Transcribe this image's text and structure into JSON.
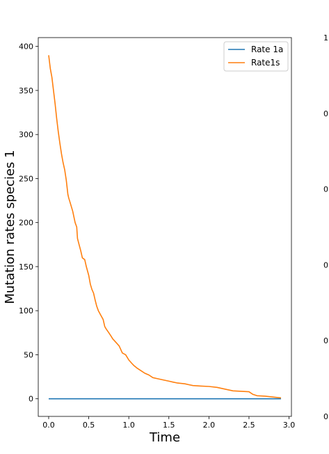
{
  "chart_data": [
    {
      "type": "line",
      "xlabel": "Time",
      "ylabel": "Mutation rates species 1",
      "xlim": [
        -0.13,
        3.03
      ],
      "ylim": [
        -20,
        410
      ],
      "xticks": [
        {
          "value": 0.0,
          "label": "0.0"
        },
        {
          "value": 0.5,
          "label": "0.5"
        },
        {
          "value": 1.0,
          "label": "1.0"
        },
        {
          "value": 1.5,
          "label": "1.5"
        },
        {
          "value": 2.0,
          "label": "2.0"
        },
        {
          "value": 2.5,
          "label": "2.5"
        },
        {
          "value": 3.0,
          "label": "3.0"
        }
      ],
      "yticks": [
        {
          "value": 0,
          "label": "0"
        },
        {
          "value": 50,
          "label": "50"
        },
        {
          "value": 100,
          "label": "100"
        },
        {
          "value": 150,
          "label": "150"
        },
        {
          "value": 200,
          "label": "200"
        },
        {
          "value": 250,
          "label": "250"
        },
        {
          "value": 300,
          "label": "300"
        },
        {
          "value": 350,
          "label": "350"
        },
        {
          "value": 400,
          "label": "400"
        }
      ],
      "legend_position": "top-right",
      "grid": false,
      "series": [
        {
          "name": "Rate 1a",
          "color": "#1f77b4",
          "x": [
            0.0,
            2.9
          ],
          "y": [
            0,
            0
          ]
        },
        {
          "name": "Rate1s",
          "color": "#ff7f0e",
          "x": [
            0.0,
            0.02,
            0.04,
            0.06,
            0.08,
            0.1,
            0.12,
            0.14,
            0.16,
            0.18,
            0.2,
            0.22,
            0.24,
            0.25,
            0.27,
            0.3,
            0.33,
            0.35,
            0.36,
            0.38,
            0.4,
            0.42,
            0.45,
            0.47,
            0.5,
            0.52,
            0.54,
            0.56,
            0.58,
            0.6,
            0.62,
            0.65,
            0.68,
            0.7,
            0.72,
            0.75,
            0.78,
            0.8,
            0.84,
            0.88,
            0.92,
            0.96,
            0.98,
            1.0,
            1.04,
            1.06,
            1.1,
            1.15,
            1.2,
            1.25,
            1.3,
            1.35,
            1.4,
            1.45,
            1.5,
            1.55,
            1.6,
            1.7,
            1.75,
            1.8,
            1.9,
            2.0,
            2.1,
            2.2,
            2.3,
            2.4,
            2.5,
            2.55,
            2.6,
            2.7,
            2.8,
            2.9
          ],
          "y": [
            390,
            375,
            365,
            350,
            335,
            318,
            303,
            290,
            278,
            268,
            260,
            248,
            232,
            228,
            222,
            213,
            200,
            195,
            182,
            175,
            168,
            160,
            158,
            150,
            140,
            130,
            124,
            120,
            112,
            105,
            100,
            95,
            90,
            82,
            79,
            75,
            71,
            68,
            64,
            60,
            52,
            50,
            47,
            44,
            40,
            38,
            35,
            32,
            29,
            27,
            24,
            23,
            22,
            21,
            20,
            19,
            18,
            17,
            16,
            15,
            14.5,
            14,
            13,
            11,
            9,
            8.5,
            8,
            5,
            3.5,
            3,
            2,
            1
          ]
        }
      ]
    },
    {
      "type": "line",
      "partial": true,
      "yticks": [
        {
          "value": 0,
          "label": "0"
        },
        {
          "value": 0.2,
          "label": "0"
        },
        {
          "value": 0.4,
          "label": "0"
        },
        {
          "value": 0.6,
          "label": "0"
        },
        {
          "value": 0.8,
          "label": "0"
        },
        {
          "value": 1.0,
          "label": "1"
        }
      ]
    }
  ]
}
